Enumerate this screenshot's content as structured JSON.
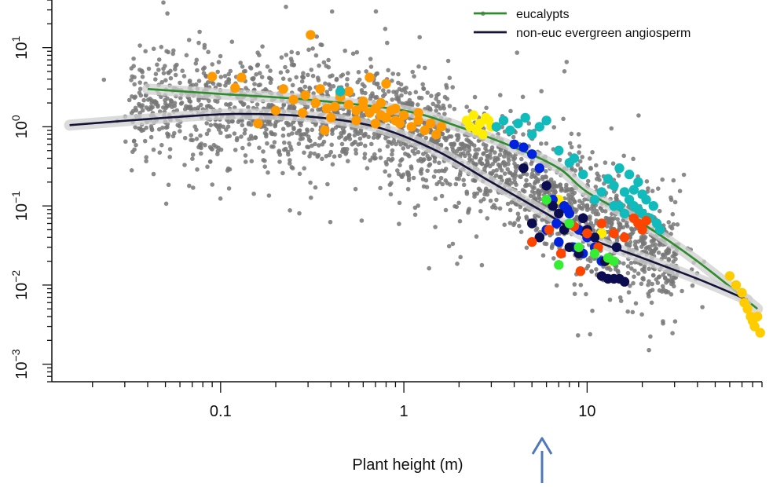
{
  "chart_data": {
    "type": "scatter",
    "title": "",
    "xlabel": "Plant height (m)",
    "ylabel": "",
    "x_scale": "log",
    "y_scale": "log",
    "xlim": [
      0.012,
      90
    ],
    "ylim": [
      0.0006,
      40
    ],
    "x_tick_labels": [
      {
        "value": 0.1,
        "label": "0.1"
      },
      {
        "value": 1,
        "label": "1"
      },
      {
        "value": 10,
        "label": "10"
      }
    ],
    "y_tick_labels": [
      {
        "value": 10,
        "base": "10",
        "exp": "1"
      },
      {
        "value": 1,
        "base": "10",
        "exp": "0"
      },
      {
        "value": 0.1,
        "base": "10",
        "exp": "−1"
      },
      {
        "value": 0.01,
        "base": "10",
        "exp": "−2"
      },
      {
        "value": 0.001,
        "base": "10",
        "exp": "−3"
      }
    ],
    "grid": false,
    "legend_position": "top-right",
    "legend": [
      {
        "label": "eucalypts",
        "color": "#2e8b2e"
      },
      {
        "label": "non-euc evergreen angiosperm",
        "color": "#141438"
      }
    ],
    "background_points_color": "#777777",
    "series": [
      {
        "name": "eucalypts",
        "kind": "smooth-line",
        "color": "#2e8b2e",
        "x": [
          0.04,
          0.1,
          0.3,
          1,
          2,
          4,
          7,
          10,
          20,
          40,
          85
        ],
        "y": [
          3.0,
          2.6,
          2.2,
          1.6,
          1.0,
          0.55,
          0.3,
          0.15,
          0.06,
          0.02,
          0.005
        ]
      },
      {
        "name": "non-euc evergreen angiosperm",
        "kind": "smooth-line",
        "color": "#141438",
        "x": [
          0.015,
          0.05,
          0.12,
          0.3,
          0.7,
          1.5,
          3,
          6,
          10,
          20,
          40,
          75
        ],
        "y": [
          1.05,
          1.3,
          1.45,
          1.35,
          1.0,
          0.5,
          0.2,
          0.08,
          0.04,
          0.022,
          0.012,
          0.0065
        ]
      },
      {
        "kind": "points",
        "color": "#ff9900",
        "x": [
          0.09,
          0.13,
          0.16,
          0.22,
          0.25,
          0.29,
          0.33,
          0.38,
          0.42,
          0.45,
          0.5,
          0.55,
          0.6,
          0.65,
          0.7,
          0.75,
          0.8,
          0.85,
          0.9,
          0.95,
          1.0,
          1.1,
          1.2,
          1.3,
          1.4,
          1.5,
          1.6,
          0.31,
          0.65,
          0.8,
          0.4,
          0.55,
          0.7,
          0.5,
          0.28,
          0.6,
          0.9,
          1.2,
          0.35,
          0.45,
          0.12,
          0.37,
          0.2,
          0.75
        ],
        "y": [
          4.3,
          4.2,
          1.1,
          3.0,
          2.2,
          2.5,
          2.0,
          1.7,
          1.8,
          2.4,
          1.9,
          1.6,
          2.1,
          1.5,
          1.7,
          1.4,
          1.3,
          1.6,
          1.2,
          1.1,
          1.4,
          1.0,
          1.2,
          0.9,
          1.1,
          0.8,
          1.0,
          14.5,
          4.2,
          3.5,
          1.3,
          1.2,
          1.1,
          2.8,
          1.5,
          1.8,
          1.7,
          1.5,
          3.0,
          2.6,
          3.1,
          0.9,
          1.6,
          2.0
        ]
      },
      {
        "kind": "points",
        "color": "#ffee00",
        "x": [
          2.2,
          2.4,
          2.6,
          2.8,
          3.0,
          2.5,
          2.3,
          2.7,
          2.9,
          7,
          9,
          12,
          13
        ],
        "y": [
          1.2,
          1.4,
          1.1,
          1.3,
          1.0,
          0.9,
          1.0,
          0.8,
          1.2,
          0.12,
          0.05,
          0.045,
          0.02
        ]
      },
      {
        "kind": "points",
        "color": "#ffcc00",
        "x": [
          60,
          65,
          70,
          72,
          75,
          78,
          80,
          82,
          85,
          88
        ],
        "y": [
          0.013,
          0.01,
          0.008,
          0.006,
          0.005,
          0.004,
          0.0035,
          0.003,
          0.004,
          0.0025
        ]
      },
      {
        "kind": "points",
        "color": "#11bbbb",
        "x": [
          3.2,
          3.5,
          3.8,
          4.2,
          4.6,
          5.0,
          5.5,
          6.0,
          7.0,
          8.0,
          8.5,
          9.5,
          11,
          12,
          14,
          15,
          16,
          17,
          18,
          19,
          20,
          21,
          22,
          23,
          24,
          25,
          15,
          17,
          19,
          16,
          18,
          20,
          13,
          14,
          0.45
        ],
        "y": [
          1.0,
          1.2,
          0.9,
          1.1,
          1.3,
          0.8,
          1.0,
          1.2,
          0.5,
          0.35,
          0.4,
          0.25,
          0.12,
          0.15,
          0.18,
          0.1,
          0.08,
          0.12,
          0.1,
          0.09,
          0.08,
          0.12,
          0.07,
          0.1,
          0.06,
          0.05,
          0.3,
          0.25,
          0.2,
          0.15,
          0.16,
          0.14,
          0.22,
          0.1,
          2.8
        ]
      },
      {
        "kind": "points",
        "color": "#0022dd",
        "x": [
          4.0,
          4.5,
          5.0,
          5.5,
          6.5,
          7.5,
          8.0,
          9.0,
          10,
          11,
          7,
          6,
          5.5,
          8.5,
          9.5,
          12,
          6.8,
          7.8
        ],
        "y": [
          0.6,
          0.55,
          0.45,
          0.3,
          0.12,
          0.1,
          0.08,
          0.05,
          0.04,
          0.03,
          0.035,
          0.05,
          0.04,
          0.03,
          0.025,
          0.02,
          0.06,
          0.09
        ]
      },
      {
        "kind": "points",
        "color": "#0c0c50",
        "x": [
          4.5,
          5.0,
          5.5,
          6.0,
          6.5,
          7.0,
          7.5,
          8.0,
          9.0,
          10,
          11,
          12,
          13,
          14,
          15,
          16,
          9.5,
          12.5,
          14.5
        ],
        "y": [
          0.3,
          0.06,
          0.04,
          0.18,
          0.1,
          0.08,
          0.05,
          0.03,
          0.025,
          0.05,
          0.04,
          0.013,
          0.012,
          0.012,
          0.012,
          0.011,
          0.07,
          0.02,
          0.03
        ]
      },
      {
        "kind": "points",
        "color": "#ff4400",
        "x": [
          5.0,
          6.2,
          8.5,
          10,
          12,
          14,
          16,
          18,
          19,
          20,
          21,
          9.2,
          11.5,
          7.2
        ],
        "y": [
          0.035,
          0.05,
          0.055,
          0.045,
          0.06,
          0.045,
          0.04,
          0.07,
          0.06,
          0.05,
          0.065,
          0.015,
          0.03,
          0.025
        ]
      },
      {
        "kind": "points",
        "color": "#33ee33",
        "x": [
          7.0,
          9.0,
          11,
          13,
          14,
          6.0,
          8.0
        ],
        "y": [
          0.018,
          0.03,
          0.025,
          0.022,
          0.02,
          0.12,
          0.06
        ]
      }
    ]
  },
  "annotation": {
    "arrow_color": "#4f78b8"
  }
}
